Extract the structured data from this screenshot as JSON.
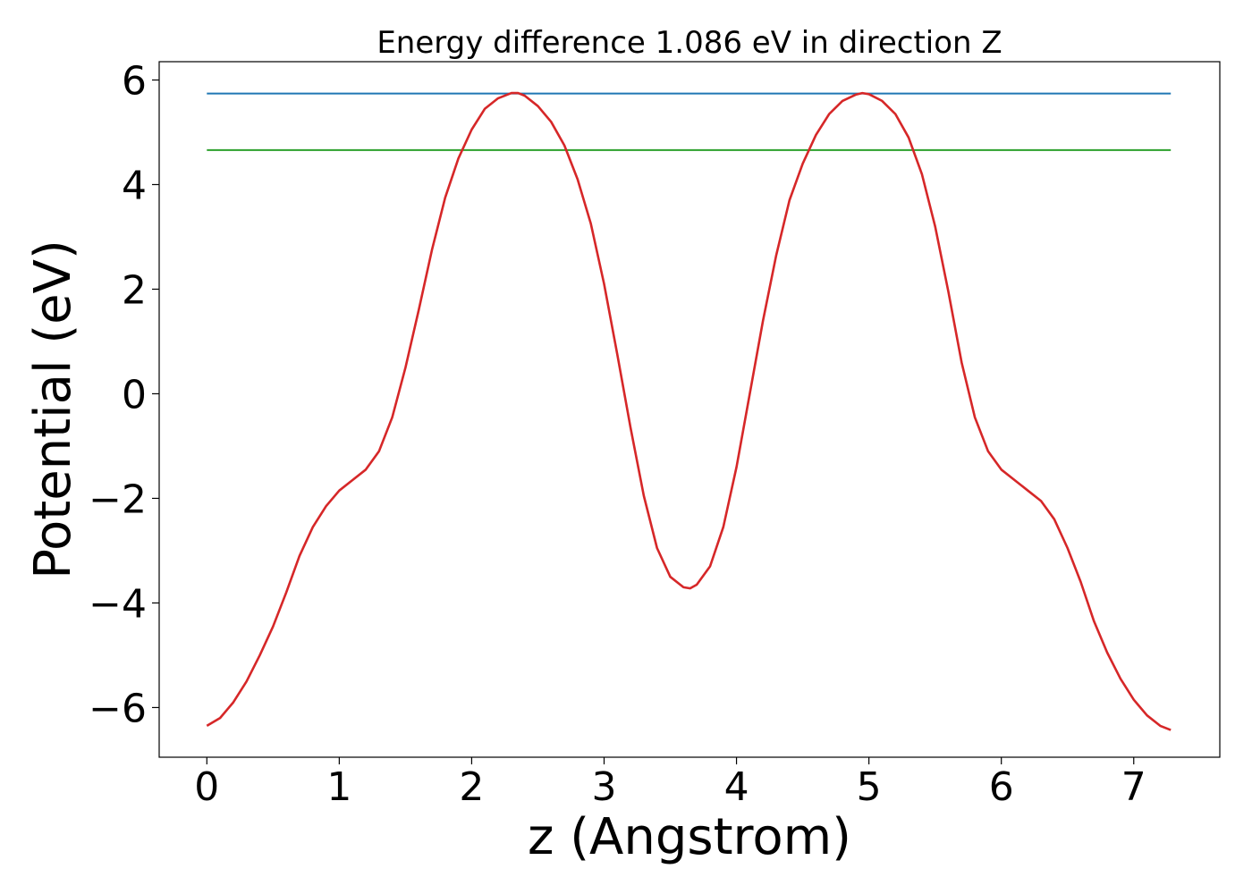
{
  "chart_data": {
    "type": "line",
    "title": "Energy difference 1.086 eV in direction Z",
    "xlabel": "z (Angstrom)",
    "ylabel": "Potential (eV)",
    "xlim": [
      -0.36,
      7.65
    ],
    "ylim": [
      -6.95,
      6.35
    ],
    "xticks": [
      0,
      1,
      2,
      3,
      4,
      5,
      6,
      7
    ],
    "yticks": [
      -6,
      -4,
      -2,
      0,
      2,
      4,
      6
    ],
    "ytick_labels": [
      "−6",
      "−4",
      "−2",
      "0",
      "2",
      "4",
      "6"
    ],
    "grid": false,
    "series": [
      {
        "color": "#d62728",
        "x": [
          0,
          0.1,
          0.2,
          0.3,
          0.4,
          0.5,
          0.6,
          0.7,
          0.8,
          0.9,
          1.0,
          1.1,
          1.2,
          1.3,
          1.4,
          1.5,
          1.6,
          1.7,
          1.8,
          1.9,
          2.0,
          2.1,
          2.2,
          2.3,
          2.35,
          2.4,
          2.5,
          2.6,
          2.7,
          2.8,
          2.9,
          3.0,
          3.1,
          3.2,
          3.3,
          3.4,
          3.5,
          3.6,
          3.65,
          3.7,
          3.8,
          3.9,
          4.0,
          4.1,
          4.2,
          4.3,
          4.4,
          4.5,
          4.6,
          4.7,
          4.8,
          4.9,
          4.95,
          5.0,
          5.1,
          5.2,
          5.3,
          5.4,
          5.5,
          5.6,
          5.7,
          5.8,
          5.9,
          6.0,
          6.1,
          6.2,
          6.3,
          6.4,
          6.5,
          6.6,
          6.7,
          6.8,
          6.9,
          7.0,
          7.1,
          7.2,
          7.28
        ],
        "y": [
          -6.35,
          -6.2,
          -5.9,
          -5.5,
          -5.0,
          -4.45,
          -3.8,
          -3.1,
          -2.55,
          -2.15,
          -1.85,
          -1.65,
          -1.45,
          -1.1,
          -0.45,
          0.5,
          1.6,
          2.75,
          3.75,
          4.5,
          5.05,
          5.45,
          5.65,
          5.75,
          5.75,
          5.7,
          5.5,
          5.2,
          4.75,
          4.1,
          3.25,
          2.1,
          0.75,
          -0.65,
          -1.95,
          -2.95,
          -3.5,
          -3.7,
          -3.72,
          -3.65,
          -3.3,
          -2.55,
          -1.4,
          0.0,
          1.4,
          2.65,
          3.7,
          4.4,
          4.95,
          5.35,
          5.6,
          5.72,
          5.75,
          5.73,
          5.6,
          5.35,
          4.9,
          4.2,
          3.2,
          1.95,
          0.6,
          -0.45,
          -1.1,
          -1.45,
          -1.65,
          -1.85,
          -2.05,
          -2.4,
          -2.95,
          -3.6,
          -4.35,
          -4.95,
          -5.45,
          -5.85,
          -6.15,
          -6.35,
          -6.43
        ]
      }
    ],
    "hlines": [
      {
        "y": 5.74,
        "color": "#1f77b4",
        "xrange": [
          0,
          7.28
        ]
      },
      {
        "y": 4.66,
        "color": "#2ca02c",
        "xrange": [
          0,
          7.28
        ]
      }
    ]
  }
}
